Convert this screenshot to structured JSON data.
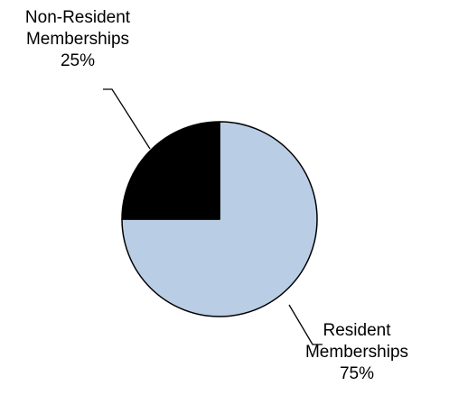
{
  "chart_data": {
    "type": "pie",
    "start_angle_deg": 0,
    "direction": "clockwise",
    "slices": [
      {
        "label_lines": [
          "Resident",
          "Memberships"
        ],
        "percent_label": "75%",
        "value": 75,
        "color": "#B9CDE5"
      },
      {
        "label_lines": [
          "Non-Resident",
          "Memberships"
        ],
        "percent_label": "25%",
        "value": 25,
        "color": "#000000"
      }
    ],
    "border_color": "#000000",
    "leader_color": "#000000"
  }
}
